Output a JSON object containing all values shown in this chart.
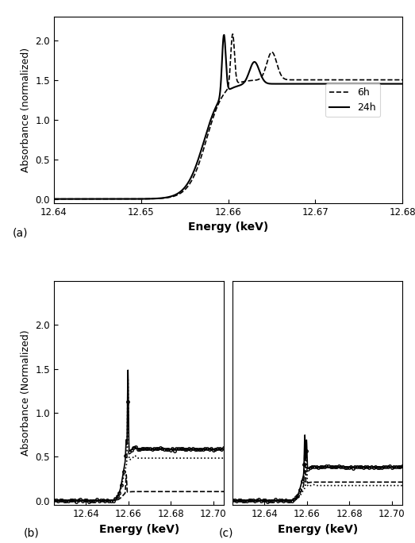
{
  "fig_a": {
    "xlim": [
      12.64,
      12.68
    ],
    "ylim": [
      -0.05,
      2.3
    ],
    "yticks": [
      0.0,
      0.5,
      1.0,
      1.5,
      2.0
    ],
    "xticks": [
      12.64,
      12.65,
      12.66,
      12.67,
      12.68
    ],
    "xlabel": "Energy (keV)",
    "ylabel": "Absorbance (normalized)",
    "label": "(a)"
  },
  "fig_b": {
    "xlim": [
      12.625,
      12.705
    ],
    "ylim": [
      -0.05,
      2.5
    ],
    "yticks": [
      0.0,
      0.5,
      1.0,
      1.5,
      2.0
    ],
    "xticks": [
      12.64,
      12.66,
      12.68,
      12.7
    ],
    "xlabel": "Energy (keV)",
    "ylabel": "Absorbance (Normalized)",
    "label": "(b)"
  },
  "fig_c": {
    "xlim": [
      12.625,
      12.705
    ],
    "ylim": [
      -0.05,
      2.5
    ],
    "yticks": [
      0.0,
      0.5,
      1.0,
      1.5,
      2.0
    ],
    "xticks": [
      12.64,
      12.66,
      12.68,
      12.7
    ],
    "xlabel": "Energy (keV)",
    "label": "(c)"
  }
}
